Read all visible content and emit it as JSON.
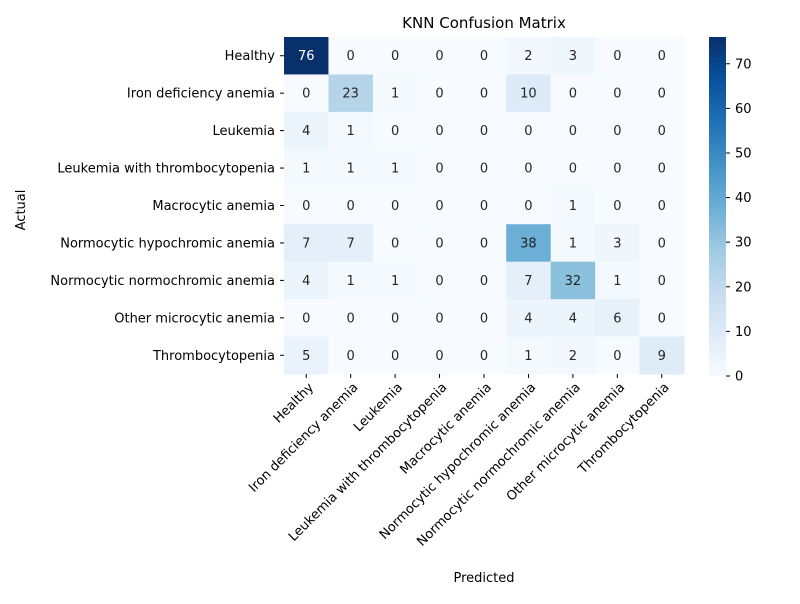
{
  "chart_data": {
    "type": "heatmap",
    "title": "KNN Confusion Matrix",
    "xlabel": "Predicted",
    "ylabel": "Actual",
    "x_categories": [
      "Healthy",
      "Iron deficiency anemia",
      "Leukemia",
      "Leukemia with thrombocytopenia",
      "Macrocytic anemia",
      "Normocytic hypochromic anemia",
      "Normocytic normochromic anemia",
      "Other microcytic anemia",
      "Thrombocytopenia"
    ],
    "y_categories": [
      "Healthy",
      "Iron deficiency anemia",
      "Leukemia",
      "Leukemia with thrombocytopenia",
      "Macrocytic anemia",
      "Normocytic hypochromic anemia",
      "Normocytic normochromic anemia",
      "Other microcytic anemia",
      "Thrombocytopenia"
    ],
    "matrix": [
      [
        76,
        0,
        0,
        0,
        0,
        2,
        3,
        0,
        0
      ],
      [
        0,
        23,
        1,
        0,
        0,
        10,
        0,
        0,
        0
      ],
      [
        4,
        1,
        0,
        0,
        0,
        0,
        0,
        0,
        0
      ],
      [
        1,
        1,
        1,
        0,
        0,
        0,
        0,
        0,
        0
      ],
      [
        0,
        0,
        0,
        0,
        0,
        0,
        1,
        0,
        0
      ],
      [
        7,
        7,
        0,
        0,
        0,
        38,
        1,
        3,
        0
      ],
      [
        4,
        1,
        1,
        0,
        0,
        7,
        32,
        1,
        0
      ],
      [
        0,
        0,
        0,
        0,
        0,
        4,
        4,
        6,
        0
      ],
      [
        5,
        0,
        0,
        0,
        0,
        1,
        2,
        0,
        9
      ]
    ],
    "value_range": [
      0,
      76
    ],
    "colorbar_ticks": [
      "0",
      "10",
      "20",
      "30",
      "40",
      "50",
      "60",
      "70"
    ],
    "colormap": "Blues",
    "colormap_stops": [
      "#f7fbff",
      "#deebf7",
      "#c6dbef",
      "#9ecae1",
      "#6baed6",
      "#4292c6",
      "#2171b5",
      "#08519c",
      "#08306b"
    ],
    "grid": false,
    "legend": "colorbar-right"
  }
}
